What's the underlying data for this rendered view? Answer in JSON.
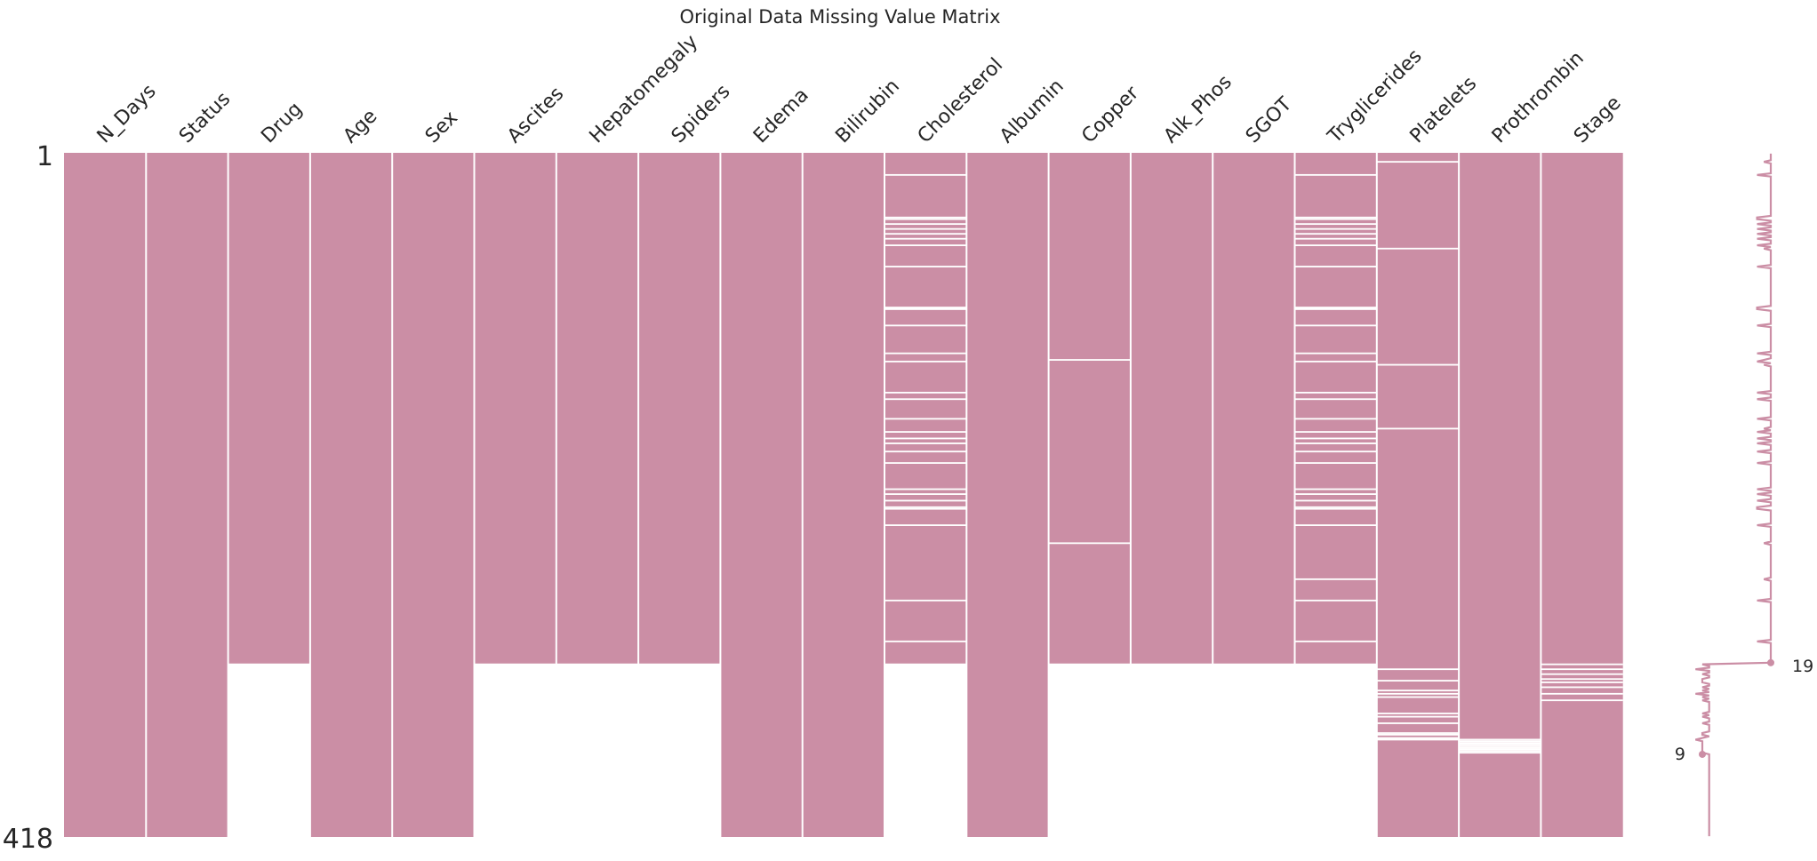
{
  "chart_data": {
    "type": "missing-value-matrix",
    "title": "Original Data Missing Value Matrix",
    "n_rows": 418,
    "row_start_label": "1",
    "row_end_label": "418",
    "fill_color": "#cb8ea5",
    "gap_color": "#ffffff",
    "columns": [
      {
        "name": "N_Days",
        "present_ranges": [
          [
            1,
            418
          ]
        ]
      },
      {
        "name": "Status",
        "present_ranges": [
          [
            1,
            418
          ]
        ]
      },
      {
        "name": "Drug",
        "present_ranges": [
          [
            1,
            312
          ]
        ]
      },
      {
        "name": "Age",
        "present_ranges": [
          [
            1,
            418
          ]
        ]
      },
      {
        "name": "Sex",
        "present_ranges": [
          [
            1,
            418
          ]
        ]
      },
      {
        "name": "Ascites",
        "present_ranges": [
          [
            1,
            312
          ]
        ]
      },
      {
        "name": "Hepatomegaly",
        "present_ranges": [
          [
            1,
            312
          ]
        ]
      },
      {
        "name": "Spiders",
        "present_ranges": [
          [
            1,
            312
          ]
        ]
      },
      {
        "name": "Edema",
        "present_ranges": [
          [
            1,
            418
          ]
        ]
      },
      {
        "name": "Bilirubin",
        "present_ranges": [
          [
            1,
            418
          ]
        ]
      },
      {
        "name": "Cholesterol",
        "present_ranges": [
          [
            1,
            312
          ]
        ],
        "missing_rows": [
          14,
          40,
          41,
          44,
          47,
          50,
          53,
          57,
          70,
          95,
          96,
          106,
          123,
          128,
          147,
          151,
          163,
          171,
          175,
          178,
          183,
          190,
          206,
          209,
          213,
          217,
          218,
          228,
          274,
          299
        ]
      },
      {
        "name": "Albumin",
        "present_ranges": [
          [
            1,
            418
          ]
        ]
      },
      {
        "name": "Copper",
        "present_ranges": [
          [
            1,
            312
          ]
        ],
        "missing_rows": [
          127,
          239
        ]
      },
      {
        "name": "Alk_Phos",
        "present_ranges": [
          [
            1,
            312
          ]
        ]
      },
      {
        "name": "SGOT",
        "present_ranges": [
          [
            1,
            312
          ]
        ]
      },
      {
        "name": "Tryglicerides",
        "present_ranges": [
          [
            1,
            312
          ]
        ],
        "missing_rows": [
          14,
          40,
          41,
          44,
          47,
          50,
          53,
          57,
          70,
          95,
          96,
          106,
          123,
          128,
          147,
          151,
          163,
          171,
          175,
          178,
          183,
          190,
          206,
          209,
          213,
          217,
          218,
          228,
          261,
          274,
          299
        ]
      },
      {
        "name": "Platelets",
        "present_ranges": [
          [
            1,
            418
          ]
        ],
        "missing_rows": [
          6,
          59,
          130,
          169,
          316,
          323,
          329,
          331,
          333,
          343,
          345,
          349,
          355,
          358,
          359,
          356
        ]
      },
      {
        "name": "Prothrombin",
        "present_ranges": [
          [
            1,
            418
          ]
        ],
        "missing_rows": [
          359,
          360,
          361,
          362,
          363,
          364,
          365,
          366,
          367
        ]
      },
      {
        "name": "Stage",
        "present_ranges": [
          [
            1,
            418
          ]
        ],
        "missing_rows": [
          313,
          316,
          319,
          322,
          324,
          327,
          331,
          335
        ]
      }
    ],
    "sparkline": {
      "min_label": "9",
      "max_label": "19",
      "min_value": 9,
      "max_value": 19,
      "min_row": 368,
      "max_row": 312
    }
  }
}
